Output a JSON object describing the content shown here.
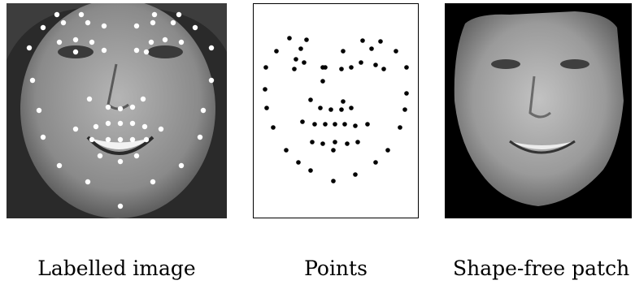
{
  "captions": {
    "labelled": "Labelled image",
    "points": "Points",
    "shape_free": "Shape-free patch"
  },
  "colors": {
    "landmark_on_photo": "#ffffff",
    "landmark_on_plot": "#000000",
    "photo_background": "#1a1a1a",
    "face_tone": "#8c8c8c"
  }
}
